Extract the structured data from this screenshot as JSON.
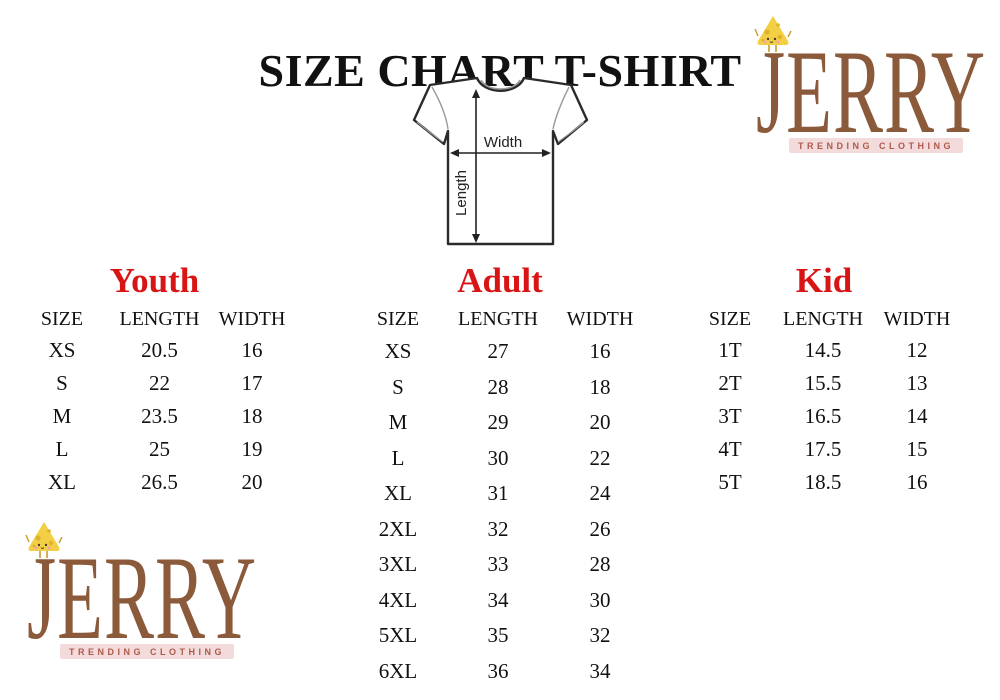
{
  "page_title": "SIZE CHART T-SHIRT",
  "diagram": {
    "width_label": "Width",
    "length_label": "Length"
  },
  "brand": {
    "name": "JERRY",
    "tagline": "TRENDING CLOTHING",
    "mascot": "cheese-wedge"
  },
  "colors": {
    "title_text": "#111111",
    "section_title_red": "#d91414",
    "brand_brown": "#8b5a3b",
    "badge_pink": "#f4dbdb",
    "badge_text": "#ae5a4c",
    "cheese_yellow": "#f2cf45"
  },
  "tables": [
    {
      "title": "Youth",
      "headers": [
        "SIZE",
        "LENGTH",
        "WIDTH"
      ],
      "rows": [
        [
          "XS",
          "20.5",
          "16"
        ],
        [
          "S",
          "22",
          "17"
        ],
        [
          "M",
          "23.5",
          "18"
        ],
        [
          "L",
          "25",
          "19"
        ],
        [
          "XL",
          "26.5",
          "20"
        ]
      ]
    },
    {
      "title": "Adult",
      "headers": [
        "SIZE",
        "LENGTH",
        "WIDTH"
      ],
      "rows": [
        [
          "XS",
          "27",
          "16"
        ],
        [
          "S",
          "28",
          "18"
        ],
        [
          "M",
          "29",
          "20"
        ],
        [
          "L",
          "30",
          "22"
        ],
        [
          "XL",
          "31",
          "24"
        ],
        [
          "2XL",
          "32",
          "26"
        ],
        [
          "3XL",
          "33",
          "28"
        ],
        [
          "4XL",
          "34",
          "30"
        ],
        [
          "5XL",
          "35",
          "32"
        ],
        [
          "6XL",
          "36",
          "34"
        ]
      ]
    },
    {
      "title": "Kid",
      "headers": [
        "SIZE",
        "LENGTH",
        "WIDTH"
      ],
      "rows": [
        [
          "1T",
          "14.5",
          "12"
        ],
        [
          "2T",
          "15.5",
          "13"
        ],
        [
          "3T",
          "16.5",
          "14"
        ],
        [
          "4T",
          "17.5",
          "15"
        ],
        [
          "5T",
          "18.5",
          "16"
        ]
      ]
    }
  ]
}
